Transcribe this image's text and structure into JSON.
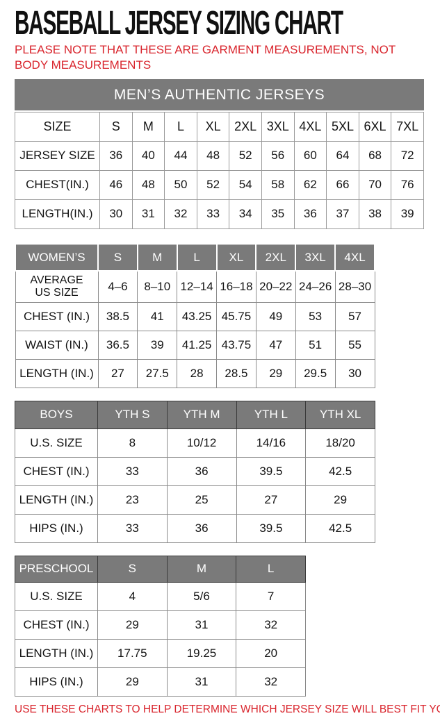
{
  "page": {
    "title": "BASEBALL JERSEY SIZING CHART",
    "note": "PLEASE NOTE THAT THESE ARE GARMENT MEASUREMENTS, NOT BODY MEASUREMENTS",
    "footer": "USE THESE CHARTS TO HELP DETERMINE WHICH JERSEY SIZE WILL BEST FIT YOU.",
    "colors": {
      "accent_red": "#d9252d",
      "header_gray": "#7a7a7a"
    }
  },
  "mens_table": {
    "banner": "MEN’S AUTHENTIC JERSEYS",
    "header": [
      "SIZE",
      "S",
      "M",
      "L",
      "XL",
      "2XL",
      "3XL",
      "4XL",
      "5XL",
      "6XL",
      "7XL"
    ],
    "rows": [
      {
        "label": "JERSEY SIZE",
        "values": [
          "36",
          "40",
          "44",
          "48",
          "52",
          "56",
          "60",
          "64",
          "68",
          "72"
        ]
      },
      {
        "label": "CHEST(IN.)",
        "values": [
          "46",
          "48",
          "50",
          "52",
          "54",
          "58",
          "62",
          "66",
          "70",
          "76"
        ]
      },
      {
        "label": "LENGTH(IN.)",
        "values": [
          "30",
          "31",
          "32",
          "33",
          "34",
          "35",
          "36",
          "37",
          "38",
          "39"
        ]
      }
    ]
  },
  "womens_table": {
    "header": [
      "WOMEN’S",
      "S",
      "M",
      "L",
      "XL",
      "2XL",
      "3XL",
      "4XL"
    ],
    "rows": [
      {
        "label": "AVERAGE US SIZE",
        "values": [
          "4–6",
          "8–10",
          "12–14",
          "16–18",
          "20–22",
          "24–26",
          "28–30"
        ]
      },
      {
        "label": "CHEST (IN.)",
        "values": [
          "38.5",
          "41",
          "43.25",
          "45.75",
          "49",
          "53",
          "57"
        ]
      },
      {
        "label": "WAIST (IN.)",
        "values": [
          "36.5",
          "39",
          "41.25",
          "43.75",
          "47",
          "51",
          "55"
        ]
      },
      {
        "label": "LENGTH (IN.)",
        "values": [
          "27",
          "27.5",
          "28",
          "28.5",
          "29",
          "29.5",
          "30"
        ]
      }
    ]
  },
  "boys_table": {
    "header": [
      "BOYS",
      "YTH S",
      "YTH M",
      "YTH L",
      "YTH XL"
    ],
    "rows": [
      {
        "label": "U.S. SIZE",
        "values": [
          "8",
          "10/12",
          "14/16",
          "18/20"
        ]
      },
      {
        "label": "CHEST (IN.)",
        "values": [
          "33",
          "36",
          "39.5",
          "42.5"
        ]
      },
      {
        "label": "LENGTH (IN.)",
        "values": [
          "23",
          "25",
          "27",
          "29"
        ]
      },
      {
        "label": "HIPS (IN.)",
        "values": [
          "33",
          "36",
          "39.5",
          "42.5"
        ]
      }
    ]
  },
  "preschool_table": {
    "header": [
      "PRESCHOOL",
      "S",
      "M",
      "L"
    ],
    "rows": [
      {
        "label": "U.S. SIZE",
        "values": [
          "4",
          "5/6",
          "7"
        ]
      },
      {
        "label": "CHEST (IN.)",
        "values": [
          "29",
          "31",
          "32"
        ]
      },
      {
        "label": "LENGTH (IN.)",
        "values": [
          "17.75",
          "19.25",
          "20"
        ]
      },
      {
        "label": "HIPS (IN.)",
        "values": [
          "29",
          "31",
          "32"
        ]
      }
    ]
  }
}
